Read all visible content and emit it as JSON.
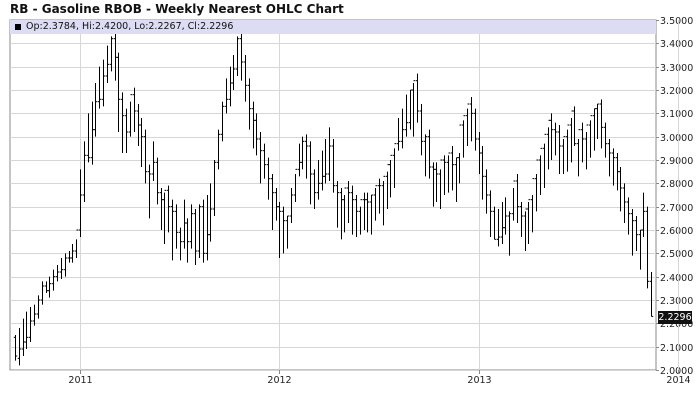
{
  "header": {
    "title": "RB - Gasoline RBOB - Weekly Nearest OHLC Chart"
  },
  "legend": {
    "text": "Op:2.3784, Hi:2.4200, Lo:2.2267, Cl:2.2296"
  },
  "last_price_label": "2.2296",
  "colors": {
    "bars": "#000000",
    "legend_bg": "#dcdcf5",
    "grid": "#d6d6d6",
    "axis": "#888888"
  },
  "chart_data": {
    "type": "ohlc",
    "title": "RB - Gasoline RBOB - Weekly Nearest OHLC Chart",
    "ylim": [
      2.0,
      3.5
    ],
    "y_ticks": [
      2.0,
      2.1,
      2.2,
      2.3,
      2.4,
      2.5,
      2.6,
      2.7,
      2.8,
      2.9,
      3.0,
      3.1,
      3.2,
      3.3,
      3.4,
      3.5
    ],
    "y_tick_labels": [
      "2.0000",
      "2.1000",
      "2.2000",
      "2.3000",
      "2.4000",
      "2.5000",
      "2.6000",
      "2.7000",
      "2.8000",
      "2.9000",
      "3.0000",
      "3.1000",
      "3.2000",
      "3.3000",
      "3.4000",
      "3.5000"
    ],
    "x_ticks": [
      "2011",
      "2012",
      "2013",
      "2014"
    ],
    "x_tick_positions": [
      17,
      69,
      121,
      173
    ],
    "grid": true,
    "last_close": 2.2296,
    "highs": [
      2.15,
      2.18,
      2.22,
      2.25,
      2.27,
      2.28,
      2.32,
      2.38,
      2.38,
      2.4,
      2.43,
      2.45,
      2.48,
      2.5,
      2.51,
      2.54,
      2.56,
      2.86,
      2.98,
      3.1,
      3.15,
      3.23,
      3.3,
      3.33,
      3.39,
      3.43,
      3.46,
      3.36,
      3.19,
      3.12,
      3.15,
      3.21,
      3.14,
      3.08,
      3.03,
      2.88,
      2.98,
      2.91,
      2.78,
      2.76,
      2.79,
      2.73,
      2.71,
      2.61,
      2.73,
      2.65,
      2.71,
      2.69,
      2.71,
      2.73,
      2.75,
      2.8,
      2.9,
      3.03,
      3.15,
      3.25,
      3.3,
      3.35,
      3.43,
      3.45,
      3.35,
      3.25,
      3.15,
      3.1,
      3.02,
      2.97,
      2.91,
      2.84,
      2.78,
      2.72,
      2.7,
      2.66,
      2.78,
      2.84,
      2.97,
      3.0,
      3.01,
      2.98,
      2.86,
      2.9,
      2.94,
      2.99,
      3.04,
      2.99,
      2.81,
      2.78,
      2.75,
      2.81,
      2.79,
      2.75,
      2.7,
      2.76,
      2.76,
      2.75,
      2.78,
      2.82,
      2.81,
      2.85,
      2.9,
      2.95,
      3.08,
      3.12,
      3.18,
      3.2,
      3.23,
      3.27,
      3.14,
      3.01,
      3.03,
      2.89,
      2.89,
      2.86,
      2.92,
      2.92,
      2.96,
      2.91,
      2.93,
      3.07,
      3.12,
      3.17,
      3.12,
      3.02,
      2.96,
      2.86,
      2.77,
      2.7,
      2.69,
      2.72,
      2.74,
      2.68,
      2.78,
      2.84,
      2.72,
      2.68,
      2.72,
      2.75,
      2.84,
      2.92,
      2.97,
      3.04,
      3.1,
      3.06,
      3.05,
      2.99,
      3.03,
      3.08,
      3.13,
      2.99,
      3.06,
      3.02,
      3.07,
      3.12,
      3.14,
      3.16,
      3.06,
      2.99,
      2.95,
      2.93,
      2.87,
      2.8,
      2.74,
      2.69,
      2.66,
      2.6,
      2.76,
      2.7,
      2.42
    ],
    "lows": [
      2.04,
      2.02,
      2.06,
      2.09,
      2.12,
      2.19,
      2.22,
      2.28,
      2.33,
      2.31,
      2.34,
      2.38,
      2.39,
      2.4,
      2.46,
      2.46,
      2.48,
      2.57,
      2.72,
      2.89,
      2.88,
      3.0,
      3.12,
      3.13,
      3.23,
      3.28,
      3.24,
      3.02,
      2.93,
      2.93,
      3.0,
      3.02,
      2.96,
      2.87,
      2.8,
      2.65,
      2.81,
      2.71,
      2.6,
      2.54,
      2.59,
      2.47,
      2.52,
      2.47,
      2.52,
      2.46,
      2.52,
      2.45,
      2.48,
      2.46,
      2.47,
      2.55,
      2.66,
      2.86,
      2.98,
      3.1,
      3.13,
      3.2,
      3.26,
      3.24,
      3.15,
      3.03,
      2.95,
      2.92,
      2.8,
      2.82,
      2.73,
      2.6,
      2.64,
      2.48,
      2.5,
      2.52,
      2.63,
      2.72,
      2.83,
      2.86,
      2.82,
      2.71,
      2.69,
      2.73,
      2.77,
      2.8,
      2.81,
      2.76,
      2.61,
      2.56,
      2.59,
      2.63,
      2.58,
      2.57,
      2.58,
      2.6,
      2.59,
      2.58,
      2.64,
      2.67,
      2.62,
      2.69,
      2.74,
      2.78,
      2.94,
      2.95,
      3.0,
      3.03,
      3.0,
      3.06,
      2.92,
      2.83,
      2.82,
      2.7,
      2.72,
      2.69,
      2.75,
      2.76,
      2.77,
      2.72,
      2.8,
      2.91,
      2.96,
      2.98,
      2.94,
      2.84,
      2.73,
      2.67,
      2.57,
      2.56,
      2.53,
      2.54,
      2.58,
      2.49,
      2.64,
      2.63,
      2.57,
      2.51,
      2.54,
      2.59,
      2.68,
      2.75,
      2.78,
      2.86,
      2.9,
      2.92,
      2.84,
      2.84,
      2.85,
      2.89,
      2.96,
      2.83,
      2.89,
      2.86,
      2.91,
      2.94,
      2.99,
      2.95,
      2.91,
      2.83,
      2.79,
      2.77,
      2.68,
      2.63,
      2.58,
      2.49,
      2.51,
      2.43,
      2.57,
      2.35,
      2.23
    ],
    "opens": [
      2.14,
      2.05,
      2.09,
      2.12,
      2.14,
      2.21,
      2.24,
      2.3,
      2.36,
      2.34,
      2.37,
      2.4,
      2.42,
      2.43,
      2.48,
      2.48,
      2.51,
      2.6,
      2.75,
      2.92,
      2.91,
      3.03,
      3.15,
      3.16,
      3.26,
      3.31,
      3.42,
      3.34,
      3.16,
      3.09,
      3.02,
      3.18,
      3.11,
      3.05,
      3.0,
      2.85,
      2.84,
      2.89,
      2.76,
      2.73,
      2.77,
      2.7,
      2.68,
      2.59,
      2.55,
      2.63,
      2.55,
      2.67,
      2.51,
      2.7,
      2.5,
      2.58,
      2.69,
      2.89,
      3.01,
      3.13,
      3.16,
      3.23,
      3.29,
      3.42,
      3.32,
      3.22,
      3.12,
      3.07,
      2.99,
      2.94,
      2.88,
      2.82,
      2.76,
      2.7,
      2.68,
      2.64,
      2.66,
      2.75,
      2.86,
      2.89,
      2.98,
      2.96,
      2.84,
      2.76,
      2.8,
      2.83,
      2.84,
      2.96,
      2.79,
      2.76,
      2.73,
      2.78,
      2.76,
      2.73,
      2.68,
      2.73,
      2.73,
      2.72,
      2.75,
      2.79,
      2.79,
      2.83,
      2.88,
      2.92,
      2.97,
      2.98,
      3.03,
      3.06,
      3.2,
      3.24,
      3.11,
      2.98,
      3.0,
      2.87,
      2.86,
      2.84,
      2.9,
      2.89,
      2.93,
      2.88,
      2.91,
      3.05,
      3.09,
      3.14,
      3.1,
      2.99,
      2.93,
      2.83,
      2.75,
      2.68,
      2.56,
      2.57,
      2.61,
      2.66,
      2.67,
      2.81,
      2.7,
      2.66,
      2.69,
      2.73,
      2.82,
      2.9,
      2.95,
      3.01,
      3.07,
      3.03,
      3.02,
      2.96,
      3.0,
      3.05,
      3.11,
      2.97,
      3.03,
      2.99,
      3.05,
      3.09,
      3.12,
      3.14,
      3.04,
      2.97,
      2.93,
      2.91,
      2.85,
      2.78,
      2.72,
      2.67,
      2.64,
      2.58,
      2.6,
      2.68,
      2.38
    ],
    "closes": [
      2.06,
      2.09,
      2.12,
      2.14,
      2.21,
      2.24,
      2.3,
      2.36,
      2.34,
      2.37,
      2.4,
      2.42,
      2.43,
      2.48,
      2.48,
      2.51,
      2.6,
      2.75,
      2.92,
      2.91,
      3.03,
      3.15,
      3.16,
      3.26,
      3.31,
      3.42,
      3.34,
      3.16,
      3.09,
      3.02,
      3.18,
      3.11,
      3.05,
      3.0,
      2.85,
      2.84,
      2.89,
      2.76,
      2.73,
      2.77,
      2.7,
      2.68,
      2.59,
      2.55,
      2.63,
      2.55,
      2.67,
      2.51,
      2.7,
      2.5,
      2.58,
      2.69,
      2.89,
      3.01,
      3.13,
      3.16,
      3.23,
      3.29,
      3.42,
      3.32,
      3.22,
      3.12,
      3.07,
      2.99,
      2.94,
      2.88,
      2.82,
      2.76,
      2.7,
      2.68,
      2.64,
      2.66,
      2.75,
      2.86,
      2.89,
      2.98,
      2.96,
      2.84,
      2.76,
      2.8,
      2.83,
      2.84,
      2.96,
      2.79,
      2.76,
      2.73,
      2.78,
      2.76,
      2.73,
      2.68,
      2.73,
      2.73,
      2.72,
      2.75,
      2.79,
      2.79,
      2.83,
      2.88,
      2.92,
      2.97,
      2.98,
      3.03,
      3.06,
      3.2,
      3.24,
      3.11,
      2.98,
      3.0,
      2.87,
      2.86,
      2.84,
      2.9,
      2.89,
      2.93,
      2.88,
      2.91,
      3.05,
      3.09,
      3.14,
      3.1,
      2.99,
      2.93,
      2.83,
      2.75,
      2.68,
      2.56,
      2.57,
      2.61,
      2.66,
      2.67,
      2.81,
      2.7,
      2.66,
      2.69,
      2.73,
      2.82,
      2.9,
      2.95,
      3.01,
      3.07,
      3.03,
      3.02,
      2.96,
      3.0,
      3.05,
      3.11,
      2.97,
      3.03,
      2.99,
      3.05,
      3.09,
      3.12,
      3.14,
      3.04,
      2.97,
      2.93,
      2.91,
      2.85,
      2.78,
      2.72,
      2.67,
      2.64,
      2.58,
      2.6,
      2.68,
      2.38,
      2.2296
    ]
  }
}
